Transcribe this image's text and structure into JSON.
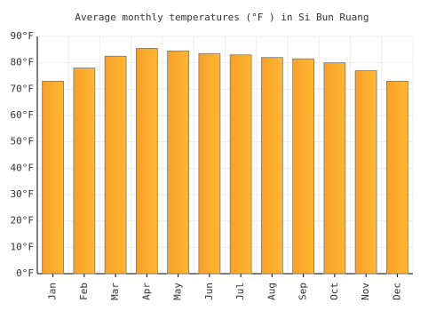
{
  "chart_data": {
    "type": "bar",
    "title": "Average monthly temperatures (°F ) in Si Bun Ruang",
    "categories": [
      "Jan",
      "Feb",
      "Mar",
      "Apr",
      "May",
      "Jun",
      "Jul",
      "Aug",
      "Sep",
      "Oct",
      "Nov",
      "Dec"
    ],
    "values": [
      73,
      78,
      82.5,
      85.5,
      84.5,
      83.5,
      83,
      82,
      81.5,
      80,
      77,
      73
    ],
    "color": "#ffb732",
    "ylim": [
      0,
      90
    ],
    "yticks": [
      {
        "value": 0,
        "label": "0°F"
      },
      {
        "value": 10,
        "label": "10°F"
      },
      {
        "value": 20,
        "label": "20°F"
      },
      {
        "value": 30,
        "label": "30°F"
      },
      {
        "value": 40,
        "label": "40°F"
      },
      {
        "value": 50,
        "label": "50°F"
      },
      {
        "value": 60,
        "label": "60°F"
      },
      {
        "value": 70,
        "label": "70°F"
      },
      {
        "value": 80,
        "label": "80°F"
      },
      {
        "value": 90,
        "label": "90°F"
      }
    ],
    "grid": true
  }
}
